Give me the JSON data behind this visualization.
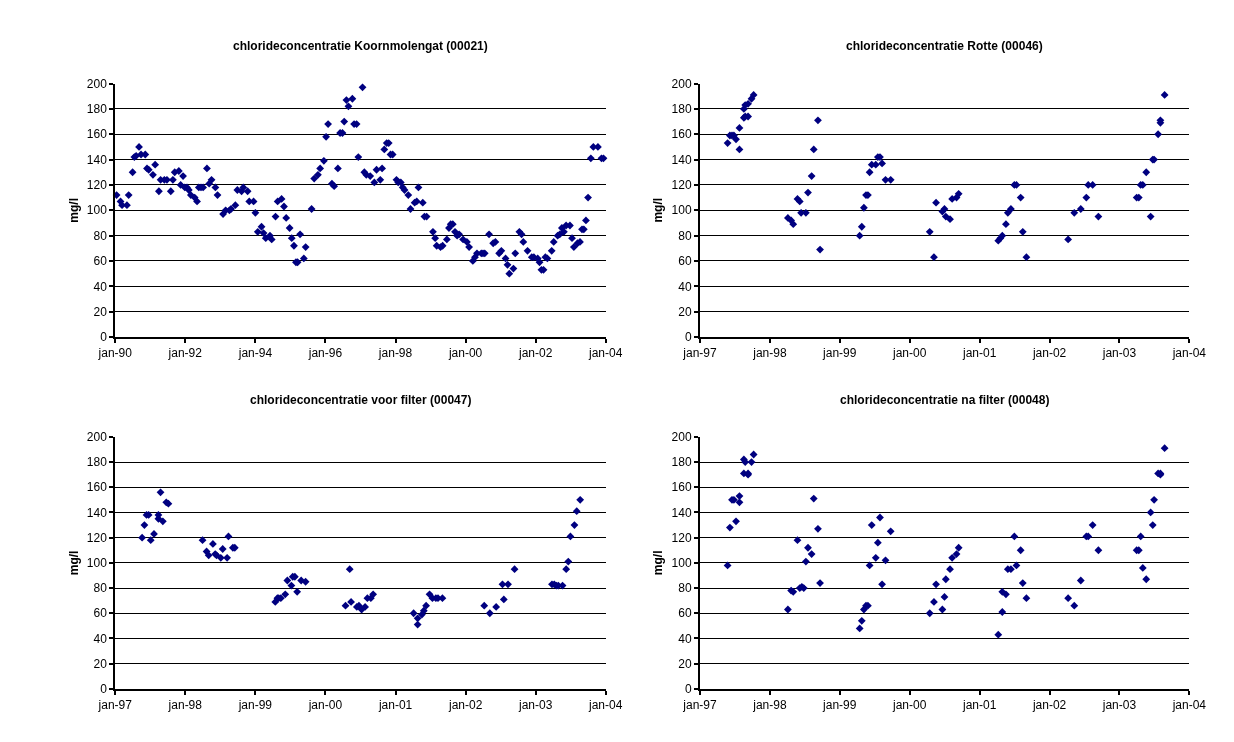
{
  "chart_data": [
    {
      "type": "scatter",
      "title": "chlorideconcentratie Koornmolengat (00021)",
      "ylabel": "mg/l",
      "color": "#000080",
      "marker": "diamond",
      "grid": "y",
      "xlim": [
        "1990-01-01",
        "2004-01-01"
      ],
      "ylim": [
        0,
        200
      ],
      "xticks": [
        {
          "value": "1990-01-01",
          "label": "jan-90"
        },
        {
          "value": "1992-01-01",
          "label": "jan-92"
        },
        {
          "value": "1994-01-01",
          "label": "jan-94"
        },
        {
          "value": "1996-01-01",
          "label": "jan-96"
        },
        {
          "value": "1998-01-01",
          "label": "jan-98"
        },
        {
          "value": "2000-01-01",
          "label": "jan-00"
        },
        {
          "value": "2002-01-01",
          "label": "jan-02"
        },
        {
          "value": "2004-01-01",
          "label": "jan-04"
        }
      ],
      "yticks": [
        0,
        20,
        40,
        60,
        80,
        100,
        120,
        140,
        160,
        180,
        200
      ],
      "x": [
        "1990-01-15",
        "1990-02-25",
        "1990-03-13",
        "1990-05-03",
        "1990-05-21",
        "1990-07-01",
        "1990-07-19",
        "1990-08-07",
        "1990-09-06",
        "1990-09-27",
        "1990-11-10",
        "1990-11-28",
        "1990-12-16",
        "1991-01-29",
        "1991-02-21",
        "1991-04-01",
        "1991-04-19",
        "1991-05-28",
        "1991-06-24",
        "1991-08-03",
        "1991-08-25",
        "1991-09-13",
        "1991-10-26",
        "1991-11-14",
        "1991-12-09",
        "1991-12-27",
        "1992-01-19",
        "1992-02-07",
        "1992-02-28",
        "1992-04-08",
        "1992-05-03",
        "1992-05-21",
        "1992-06-13",
        "1992-07-05",
        "1992-08-14",
        "1992-09-06",
        "1992-10-01",
        "1992-11-10",
        "1992-12-02",
        "1993-01-29",
        "1993-02-25",
        "1993-04-05",
        "1993-04-22",
        "1993-06-06",
        "1993-06-27",
        "1993-08-10",
        "1993-08-28",
        "1993-10-12",
        "1993-10-29",
        "1993-12-13",
        "1994-01-01",
        "1994-01-26",
        "1994-03-06",
        "1994-03-27",
        "1994-04-19",
        "1994-06-02",
        "1994-06-20",
        "1994-07-30",
        "1994-08-21",
        "1994-10-01",
        "1994-10-26",
        "1994-11-18",
        "1994-12-24",
        "1995-01-15",
        "1995-02-07",
        "1995-02-28",
        "1995-03-17",
        "1995-04-12",
        "1995-05-21",
        "1995-06-09",
        "1995-08-10",
        "1995-09-06",
        "1995-10-15",
        "1995-11-07",
        "1995-12-16",
        "1996-01-08",
        "1996-01-29",
        "1996-03-09",
        "1996-04-01",
        "1996-05-10",
        "1996-06-02",
        "1996-06-27",
        "1996-07-15",
        "1996-08-07",
        "1996-08-28",
        "1996-10-08",
        "1996-10-26",
        "1996-11-21",
        "1996-12-09",
        "1997-01-22",
        "1997-02-10",
        "1997-03-02",
        "1997-04-12",
        "1997-05-25",
        "1997-06-17",
        "1997-07-26",
        "1997-08-14",
        "1997-09-06",
        "1997-10-01",
        "1997-10-22",
        "1997-11-10",
        "1997-12-02",
        "1998-01-11",
        "1998-01-29",
        "1998-02-25",
        "1998-03-17",
        "1998-04-05",
        "1998-05-14",
        "1998-06-06",
        "1998-07-19",
        "1998-08-10",
        "1998-08-28",
        "1998-10-12",
        "1998-10-29",
        "1998-11-21",
        "1999-01-26",
        "1999-02-18",
        "1999-03-06",
        "1999-04-15",
        "1999-05-07",
        "1999-06-20",
        "1999-07-12",
        "1999-07-30",
        "1999-08-21",
        "1999-09-13",
        "1999-10-05",
        "1999-10-26",
        "1999-12-06",
        "2000-01-15",
        "2000-02-07",
        "2000-03-17",
        "2000-04-08",
        "2000-04-29",
        "2000-06-13",
        "2000-07-01",
        "2000-07-19",
        "2000-09-02",
        "2000-10-15",
        "2000-11-07",
        "2000-12-16",
        "2001-01-08",
        "2001-02-21",
        "2001-03-13",
        "2001-04-01",
        "2001-05-14",
        "2001-06-02",
        "2001-07-15",
        "2001-08-07",
        "2001-08-25",
        "2001-10-08",
        "2001-11-21",
        "2001-12-13",
        "2002-01-22",
        "2002-02-10",
        "2002-03-02",
        "2002-03-24",
        "2002-04-12",
        "2002-05-03",
        "2002-06-17",
        "2002-07-08",
        "2002-08-18",
        "2002-09-09",
        "2002-10-01",
        "2002-10-22",
        "2002-11-14",
        "2002-12-24",
        "2003-01-15",
        "2003-02-03",
        "2003-03-13",
        "2003-04-08",
        "2003-04-29",
        "2003-05-18",
        "2003-06-09",
        "2003-07-01",
        "2003-07-30",
        "2003-08-25",
        "2003-10-12",
        "2003-11-18",
        "2003-12-09"
      ],
      "values": [
        112,
        107,
        104,
        104,
        112,
        130,
        142,
        143,
        150,
        144,
        144,
        133,
        132,
        128,
        136,
        115,
        124,
        124,
        124,
        115,
        124,
        130,
        131,
        120,
        127,
        118,
        118,
        116,
        112,
        110,
        107,
        118,
        118,
        118,
        133,
        121,
        124,
        118,
        112,
        97,
        100,
        100,
        101,
        104,
        116,
        115,
        118,
        115,
        107,
        107,
        98,
        83,
        87,
        82,
        78,
        80,
        77,
        95,
        107,
        109,
        103,
        94,
        86,
        78,
        72,
        59,
        59,
        81,
        62,
        71,
        101,
        125,
        128,
        133,
        139,
        158,
        168,
        121,
        119,
        133,
        161,
        161,
        170,
        187,
        182,
        188,
        168,
        168,
        142,
        197,
        130,
        128,
        127,
        122,
        132,
        124,
        133,
        148,
        153,
        153,
        144,
        144,
        124,
        122,
        122,
        118,
        116,
        112,
        101,
        106,
        107,
        118,
        106,
        95,
        95,
        83,
        78,
        72,
        71,
        72,
        77,
        86,
        89,
        89,
        83,
        80,
        81,
        77,
        75,
        71,
        60,
        63,
        66,
        66,
        66,
        66,
        81,
        74,
        75,
        66,
        68,
        62,
        57,
        50,
        54,
        66,
        83,
        81,
        75,
        68,
        63,
        63,
        62,
        59,
        53,
        53,
        63,
        62,
        68,
        75,
        80,
        81,
        86,
        83,
        88,
        88,
        78,
        71,
        74,
        75,
        85,
        85,
        92,
        110,
        141,
        150,
        150,
        141,
        141
      ]
    },
    {
      "type": "scatter",
      "title": "chlorideconcentratie Rotte (00046)",
      "ylabel": "mg/l",
      "color": "#000080",
      "marker": "diamond",
      "grid": "y",
      "xlim": [
        "1997-01-01",
        "2004-01-01"
      ],
      "ylim": [
        0,
        200
      ],
      "xticks": [
        {
          "value": "1997-01-01",
          "label": "jan-97"
        },
        {
          "value": "1998-01-01",
          "label": "jan-98"
        },
        {
          "value": "1999-01-01",
          "label": "jan-99"
        },
        {
          "value": "2000-01-01",
          "label": "jan-00"
        },
        {
          "value": "2001-01-01",
          "label": "jan-01"
        },
        {
          "value": "2002-01-01",
          "label": "jan-02"
        },
        {
          "value": "2003-01-01",
          "label": "jan-03"
        },
        {
          "value": "2004-01-01",
          "label": "jan-04"
        }
      ],
      "yticks": [
        0,
        20,
        40,
        60,
        80,
        100,
        120,
        140,
        160,
        180,
        200
      ],
      "x": [
        "1997-05-25",
        "1997-06-06",
        "1997-06-17",
        "1997-06-27",
        "1997-07-08",
        "1997-07-26",
        "1997-07-26",
        "1997-08-18",
        "1997-08-18",
        "1997-08-25",
        "1997-08-25",
        "1997-09-09",
        "1997-09-09",
        "1997-09-27",
        "1997-10-08",
        "1998-04-05",
        "1998-04-22",
        "1998-05-03",
        "1998-05-25",
        "1998-06-06",
        "1998-06-13",
        "1998-07-08",
        "1998-07-19",
        "1998-08-07",
        "1998-08-18",
        "1998-09-09",
        "1998-09-20",
        "1999-04-15",
        "1999-04-26",
        "1999-05-07",
        "1999-05-18",
        "1999-05-28",
        "1999-06-06",
        "1999-06-17",
        "1999-07-08",
        "1999-07-19",
        "1999-07-30",
        "1999-08-10",
        "1999-08-28",
        "1999-09-24",
        "2000-04-15",
        "2000-05-07",
        "2000-05-18",
        "2000-06-20",
        "2000-07-01",
        "2000-07-08",
        "2000-07-30",
        "2000-08-10",
        "2000-09-02",
        "2000-09-13",
        "2001-04-08",
        "2001-04-19",
        "2001-04-29",
        "2001-05-18",
        "2001-05-28",
        "2001-06-13",
        "2001-07-01",
        "2001-07-12",
        "2001-08-03",
        "2001-08-14",
        "2001-09-02",
        "2002-04-08",
        "2002-05-10",
        "2002-06-13",
        "2002-07-12",
        "2002-07-22",
        "2002-08-14",
        "2002-09-13",
        "2003-04-01",
        "2003-04-12",
        "2003-04-22",
        "2003-05-03",
        "2003-05-21",
        "2003-06-13",
        "2003-06-24",
        "2003-07-01",
        "2003-07-22",
        "2003-08-03",
        "2003-08-03",
        "2003-08-25"
      ],
      "values": [
        153,
        159,
        159,
        159,
        156,
        148,
        165,
        180,
        173,
        183,
        174,
        184,
        174,
        188,
        191,
        94,
        92,
        89,
        109,
        107,
        98,
        98,
        114,
        127,
        148,
        171,
        69,
        80,
        87,
        102,
        112,
        112,
        130,
        136,
        136,
        142,
        142,
        137,
        124,
        124,
        83,
        63,
        106,
        99,
        101,
        95,
        93,
        109,
        110,
        113,
        76,
        78,
        80,
        89,
        98,
        101,
        120,
        120,
        110,
        83,
        63,
        77,
        98,
        101,
        110,
        120,
        120,
        95,
        110,
        110,
        120,
        120,
        130,
        95,
        140,
        140,
        160,
        171,
        169,
        191
      ]
    },
    {
      "type": "scatter",
      "title": "chlorideconcentratie voor filter (00047)",
      "ylabel": "mg/l",
      "color": "#000080",
      "marker": "diamond",
      "grid": "y",
      "xlim": [
        "1997-01-01",
        "2004-01-01"
      ],
      "ylim": [
        0,
        200
      ],
      "xticks": [
        {
          "value": "1997-01-01",
          "label": "jan-97"
        },
        {
          "value": "1998-01-01",
          "label": "jan-98"
        },
        {
          "value": "1999-01-01",
          "label": "jan-99"
        },
        {
          "value": "2000-01-01",
          "label": "jan-00"
        },
        {
          "value": "2001-01-01",
          "label": "jan-01"
        },
        {
          "value": "2002-01-01",
          "label": "jan-02"
        },
        {
          "value": "2003-01-01",
          "label": "jan-03"
        },
        {
          "value": "2004-01-01",
          "label": "jan-04"
        }
      ],
      "yticks": [
        0,
        20,
        40,
        60,
        80,
        100,
        120,
        140,
        160,
        180,
        200
      ],
      "x": [
        "1997-05-21",
        "1997-06-02",
        "1997-06-13",
        "1997-06-24",
        "1997-07-05",
        "1997-07-22",
        "1997-08-14",
        "1997-08-14",
        "1997-09-06",
        "1997-08-25",
        "1997-09-24",
        "1997-10-05",
        "1998-04-01",
        "1998-04-22",
        "1998-05-03",
        "1998-05-25",
        "1998-06-06",
        "1998-06-13",
        "1998-07-05",
        "1998-07-15",
        "1998-08-07",
        "1998-08-14",
        "1998-09-06",
        "1998-09-16",
        "1999-04-15",
        "1999-04-26",
        "1999-05-03",
        "1999-05-14",
        "1999-06-06",
        "1999-06-17",
        "1999-07-08",
        "1999-07-15",
        "1999-07-26",
        "1999-08-07",
        "1999-08-28",
        "1999-09-20",
        "2000-04-15",
        "2000-05-07",
        "2000-05-14",
        "2000-06-13",
        "2000-06-24",
        "2000-07-08",
        "2000-07-26",
        "2000-08-07",
        "2000-08-25",
        "2000-09-06",
        "2001-04-05",
        "2001-04-26",
        "2001-04-26",
        "2001-05-18",
        "2001-05-28",
        "2001-06-09",
        "2001-06-27",
        "2001-07-12",
        "2001-07-30",
        "2001-08-10",
        "2001-09-02",
        "2002-04-08",
        "2002-05-07",
        "2002-06-09",
        "2002-07-12",
        "2002-07-19",
        "2002-08-10",
        "2002-09-13",
        "2003-03-27",
        "2003-04-08",
        "2003-04-19",
        "2003-04-29",
        "2003-05-21",
        "2003-06-09",
        "2003-06-20",
        "2003-07-01",
        "2003-07-22",
        "2003-08-03",
        "2003-08-21"
      ],
      "values": [
        120,
        130,
        138,
        138,
        118,
        123,
        138,
        135,
        133,
        156,
        148,
        147,
        118,
        109,
        106,
        115,
        107,
        106,
        104,
        111,
        104,
        121,
        112,
        112,
        69,
        72,
        72,
        72,
        75,
        86,
        82,
        89,
        89,
        77,
        86,
        85,
        66,
        95,
        69,
        65,
        66,
        63,
        65,
        72,
        72,
        75,
        60,
        56,
        51,
        59,
        62,
        66,
        75,
        72,
        72,
        72,
        72,
        66,
        60,
        65,
        83,
        71,
        83,
        95,
        83,
        83,
        82,
        82,
        82,
        95,
        101,
        121,
        130,
        141,
        150
      ]
    },
    {
      "type": "scatter",
      "title": "chlorideconcentratie na filter (00048)",
      "ylabel": "mg/l",
      "color": "#000080",
      "marker": "diamond",
      "grid": "y",
      "xlim": [
        "1997-01-01",
        "2004-01-01"
      ],
      "ylim": [
        0,
        200
      ],
      "xticks": [
        {
          "value": "1997-01-01",
          "label": "jan-97"
        },
        {
          "value": "1998-01-01",
          "label": "jan-98"
        },
        {
          "value": "1999-01-01",
          "label": "jan-99"
        },
        {
          "value": "2000-01-01",
          "label": "jan-00"
        },
        {
          "value": "2001-01-01",
          "label": "jan-01"
        },
        {
          "value": "2002-01-01",
          "label": "jan-02"
        },
        {
          "value": "2003-01-01",
          "label": "jan-03"
        },
        {
          "value": "2004-01-01",
          "label": "jan-04"
        }
      ],
      "yticks": [
        0,
        20,
        40,
        60,
        80,
        100,
        120,
        140,
        160,
        180,
        200
      ],
      "x": [
        "1997-05-25",
        "1997-06-06",
        "1997-06-17",
        "1997-06-27",
        "1997-07-08",
        "1997-07-26",
        "1997-07-26",
        "1997-08-18",
        "1997-08-18",
        "1997-08-25",
        "1997-09-09",
        "1997-09-09",
        "1997-09-27",
        "1997-10-08",
        "1998-04-05",
        "1998-04-22",
        "1998-05-03",
        "1998-05-25",
        "1998-06-06",
        "1998-06-17",
        "1998-06-27",
        "1998-07-08",
        "1998-07-19",
        "1998-08-07",
        "1998-08-18",
        "1998-09-09",
        "1998-09-20",
        "1999-04-15",
        "1999-04-26",
        "1999-05-07",
        "1999-05-18",
        "1999-05-28",
        "1999-06-06",
        "1999-06-17",
        "1999-07-08",
        "1999-07-19",
        "1999-07-30",
        "1999-08-10",
        "1999-08-28",
        "1999-09-24",
        "2000-04-15",
        "2000-05-07",
        "2000-05-18",
        "2000-06-20",
        "2000-07-01",
        "2000-07-08",
        "2000-07-30",
        "2000-08-10",
        "2000-09-02",
        "2000-09-13",
        "2001-04-08",
        "2001-04-29",
        "2001-04-29",
        "2001-05-18",
        "2001-05-28",
        "2001-06-13",
        "2001-07-01",
        "2001-07-12",
        "2001-08-03",
        "2001-08-14",
        "2001-09-02",
        "2002-04-08",
        "2002-05-10",
        "2002-06-13",
        "2002-07-12",
        "2002-07-22",
        "2002-08-14",
        "2002-09-13",
        "2003-04-01",
        "2003-04-12",
        "2003-04-22",
        "2003-05-03",
        "2003-05-21",
        "2003-06-13",
        "2003-06-24",
        "2003-07-01",
        "2003-07-22",
        "2003-08-03",
        "2003-08-03",
        "2003-08-25"
      ],
      "values": [
        98,
        128,
        150,
        150,
        133,
        153,
        148,
        182,
        171,
        180,
        170,
        171,
        180,
        186,
        63,
        78,
        77,
        118,
        80,
        81,
        80,
        101,
        112,
        107,
        151,
        127,
        84,
        48,
        54,
        63,
        66,
        66,
        98,
        130,
        104,
        116,
        136,
        83,
        102,
        125,
        60,
        69,
        83,
        63,
        73,
        87,
        95,
        104,
        107,
        112,
        43,
        61,
        77,
        75,
        95,
        95,
        121,
        98,
        110,
        84,
        72,
        72,
        66,
        86,
        121,
        121,
        130,
        110,
        110,
        110,
        121,
        96,
        87,
        140,
        130,
        150,
        171,
        171,
        170,
        191
      ]
    }
  ]
}
